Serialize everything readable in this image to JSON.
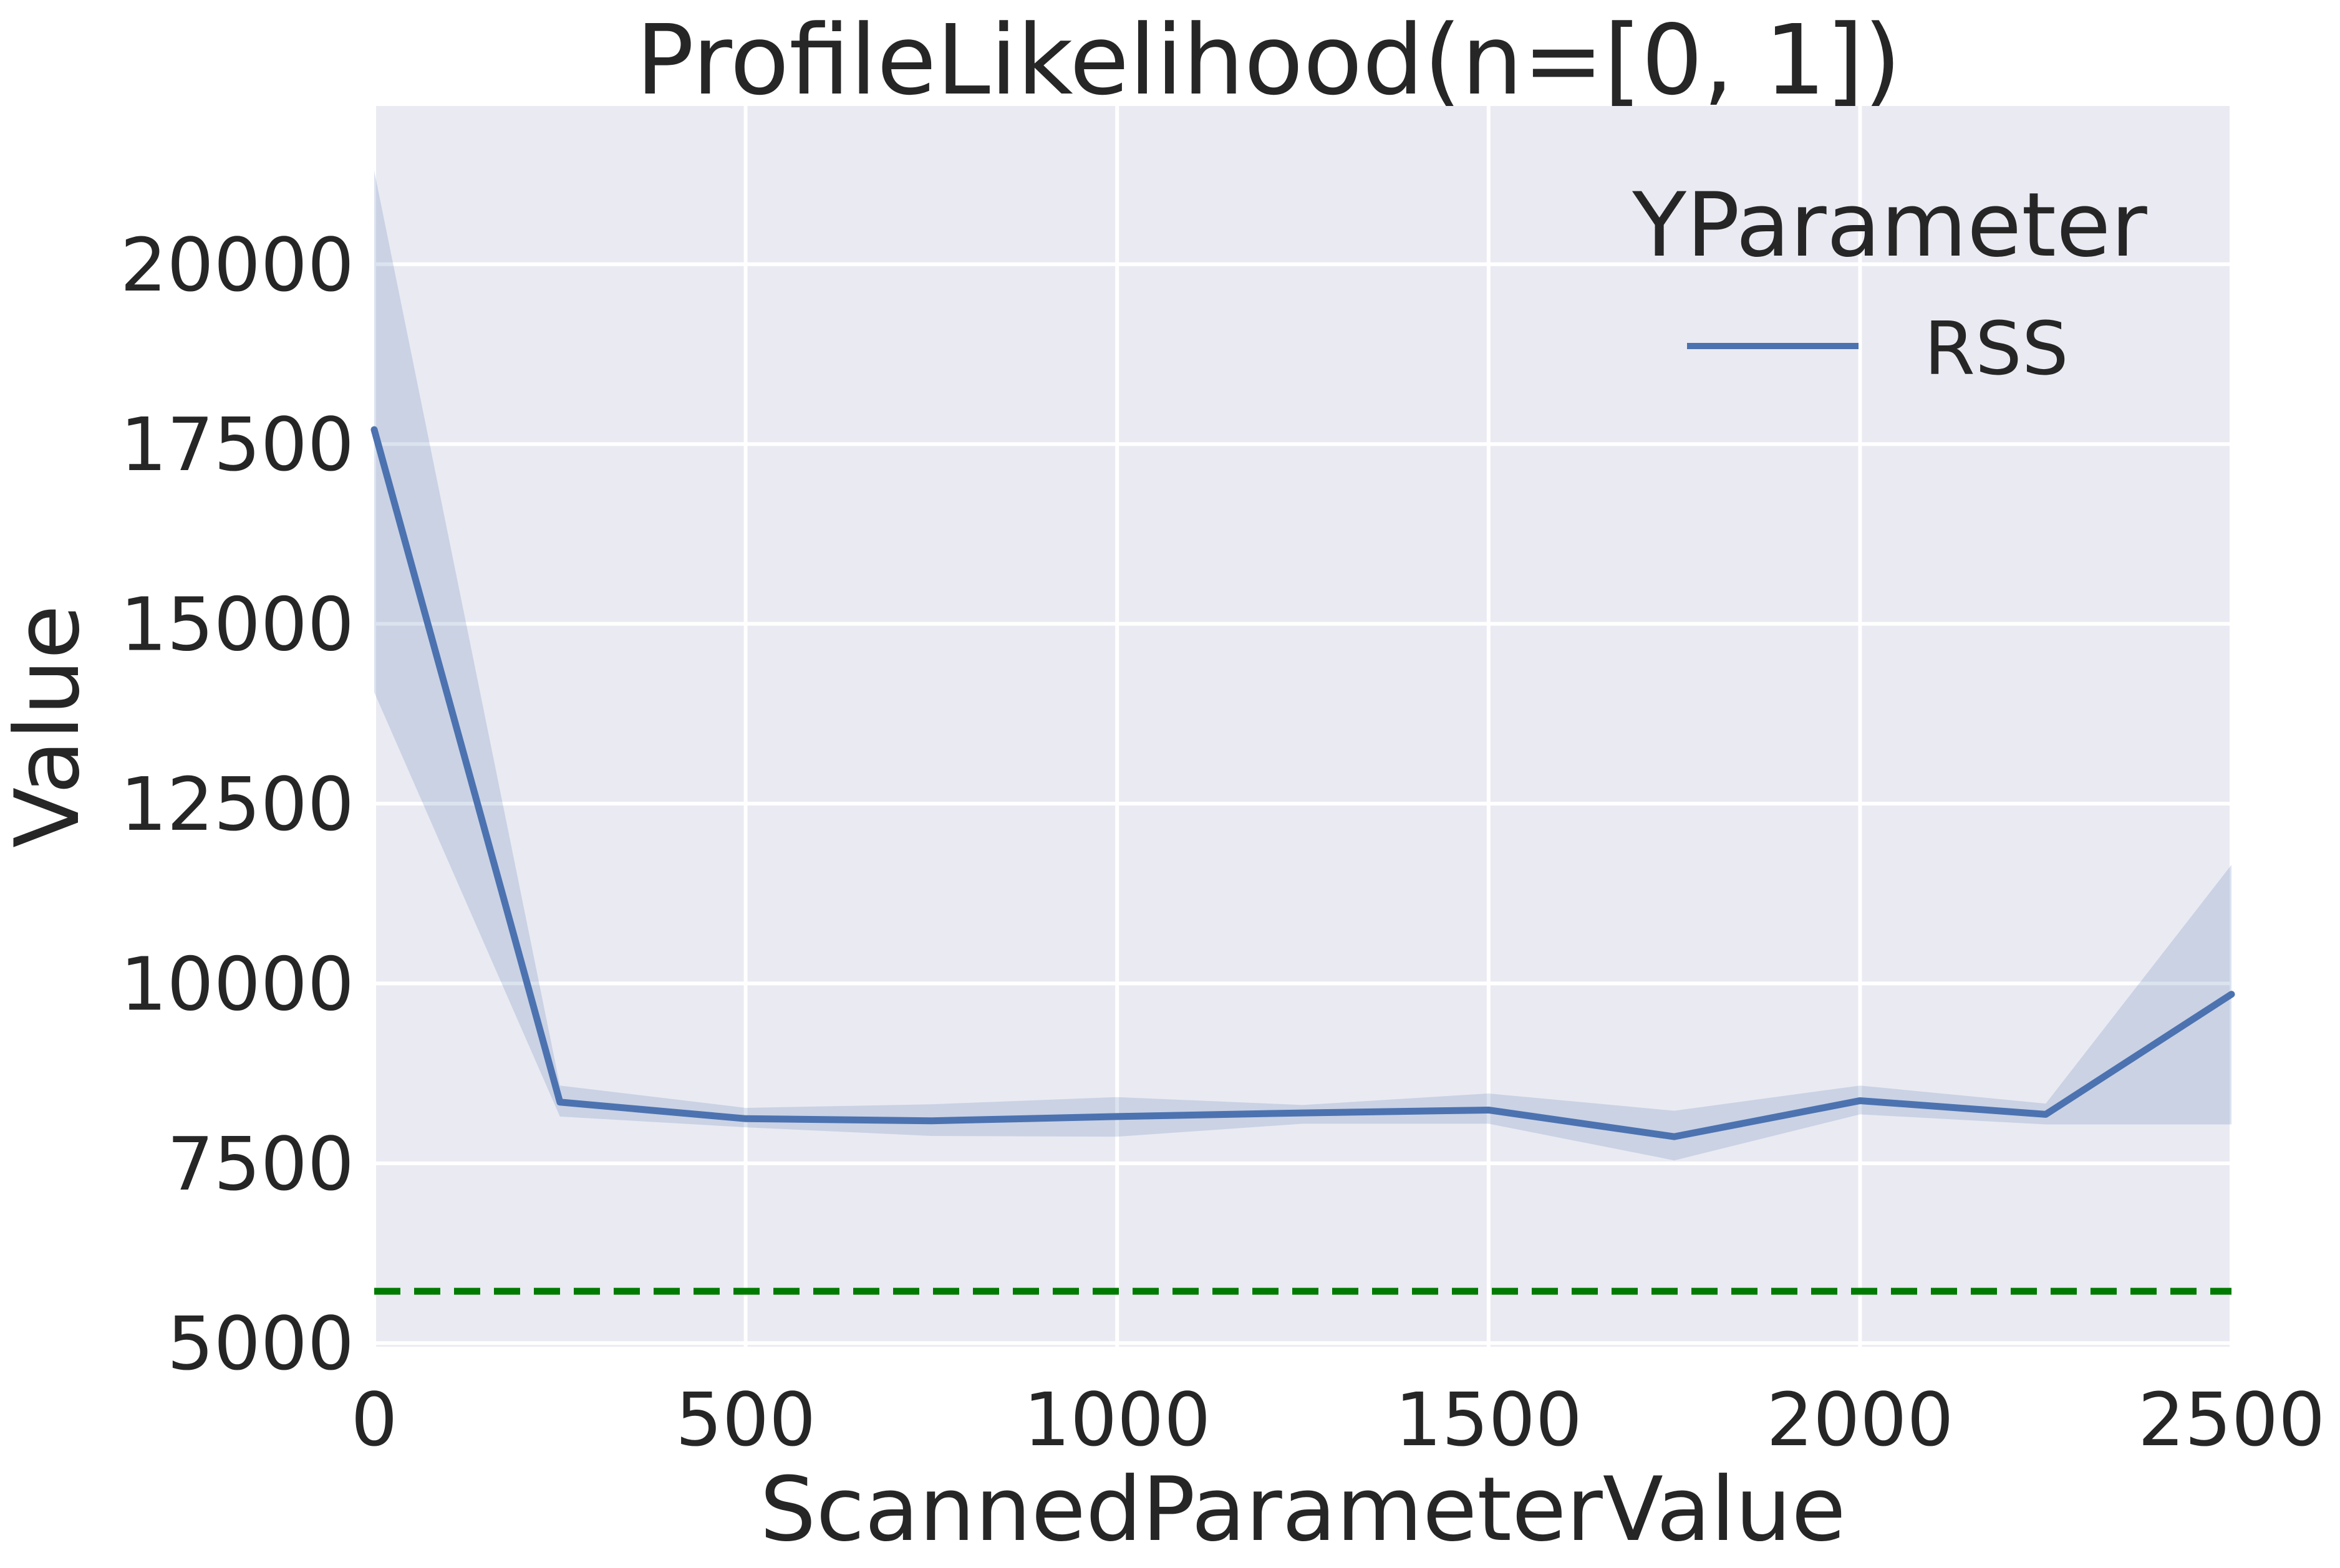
{
  "chart_data": {
    "type": "line",
    "title": "ProfileLikelihood(n=[0, 1])",
    "xlabel": "ScannedParameterValue",
    "ylabel": "Value",
    "xlim": [
      0,
      2500
    ],
    "ylim": [
      4950,
      22200
    ],
    "xticks": [
      0,
      500,
      1000,
      1500,
      2000,
      2500
    ],
    "yticks": [
      5000,
      7500,
      10000,
      12500,
      15000,
      17500,
      20000
    ],
    "grid": true,
    "legend": {
      "title": "YParameter",
      "position": "top-right"
    },
    "colors": {
      "background": "#eaeaf2",
      "grid": "#ffffff",
      "line": "#4c72b0",
      "band": "#4c72b0",
      "reference": "#007a00"
    },
    "series": [
      {
        "name": "RSS",
        "x": [
          0,
          250,
          500,
          750,
          1000,
          1250,
          1500,
          1750,
          2000,
          2250,
          2500
        ],
        "values": [
          17700,
          8350,
          8120,
          8090,
          8150,
          8200,
          8240,
          7870,
          8370,
          8180,
          9850
        ],
        "ci_lower": [
          14050,
          8150,
          8000,
          7880,
          7870,
          8050,
          8050,
          7540,
          8180,
          8040,
          8040
        ],
        "ci_upper": [
          21300,
          8580,
          8270,
          8320,
          8420,
          8310,
          8470,
          8230,
          8580,
          8330,
          11650
        ]
      }
    ],
    "reference_line": {
      "y": 5720,
      "style": "dashed"
    }
  }
}
